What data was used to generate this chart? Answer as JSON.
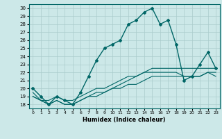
{
  "xlabel": "Humidex (Indice chaleur)",
  "xlim": [
    -0.5,
    23.5
  ],
  "ylim": [
    17.5,
    30.5
  ],
  "yticks": [
    18,
    19,
    20,
    21,
    22,
    23,
    24,
    25,
    26,
    27,
    28,
    29,
    30
  ],
  "xticks": [
    0,
    1,
    2,
    3,
    4,
    5,
    6,
    7,
    8,
    9,
    10,
    11,
    12,
    13,
    14,
    15,
    16,
    17,
    18,
    19,
    20,
    21,
    22,
    23
  ],
  "bg_color": "#cce8e8",
  "line_color": "#006666",
  "grid_color": "#aacccc",
  "lines": [
    {
      "x": [
        0,
        1,
        2,
        3,
        4,
        5,
        6,
        7,
        8,
        9,
        10,
        11,
        12,
        13,
        14,
        15,
        16,
        17,
        18,
        19,
        20,
        21,
        22,
        23
      ],
      "y": [
        20,
        19,
        18,
        19,
        18.5,
        18,
        19.5,
        21.5,
        23.5,
        25,
        25.5,
        26,
        28,
        28.5,
        29.5,
        30,
        28,
        28.5,
        25.5,
        21,
        21.5,
        23,
        24.5,
        22.5
      ],
      "marker": "D",
      "markersize": 2.0,
      "linewidth": 1.0
    },
    {
      "x": [
        0,
        1,
        2,
        3,
        4,
        5,
        6,
        7,
        8,
        9,
        10,
        11,
        12,
        13,
        14,
        15,
        16,
        17,
        18,
        19,
        20,
        21,
        22,
        23
      ],
      "y": [
        19.5,
        18.5,
        18.5,
        19,
        18.5,
        18.5,
        19,
        19.5,
        20,
        20,
        20.5,
        21,
        21.5,
        21.5,
        22,
        22.5,
        22.5,
        22.5,
        22.5,
        22.5,
        22.5,
        22.5,
        22.5,
        22.5
      ],
      "marker": null,
      "markersize": 0,
      "linewidth": 0.8
    },
    {
      "x": [
        0,
        1,
        2,
        3,
        4,
        5,
        6,
        7,
        8,
        9,
        10,
        11,
        12,
        13,
        14,
        15,
        16,
        17,
        18,
        19,
        20,
        21,
        22,
        23
      ],
      "y": [
        19,
        18.5,
        18,
        18.5,
        18,
        18,
        18.5,
        19,
        19.5,
        19.5,
        20,
        20.5,
        21,
        21.5,
        22,
        22,
        22,
        22,
        22,
        21.5,
        21.5,
        21.5,
        22,
        22
      ],
      "marker": null,
      "markersize": 0,
      "linewidth": 0.8
    },
    {
      "x": [
        0,
        1,
        2,
        3,
        4,
        5,
        6,
        7,
        8,
        9,
        10,
        11,
        12,
        13,
        14,
        15,
        16,
        17,
        18,
        19,
        20,
        21,
        22,
        23
      ],
      "y": [
        19,
        18.5,
        18,
        18.5,
        18,
        18,
        18.5,
        19,
        19,
        19.5,
        20,
        20,
        20.5,
        20.5,
        21,
        21.5,
        21.5,
        21.5,
        21.5,
        21.5,
        21.5,
        21.5,
        22,
        21.5
      ],
      "marker": null,
      "markersize": 0,
      "linewidth": 0.8
    }
  ]
}
